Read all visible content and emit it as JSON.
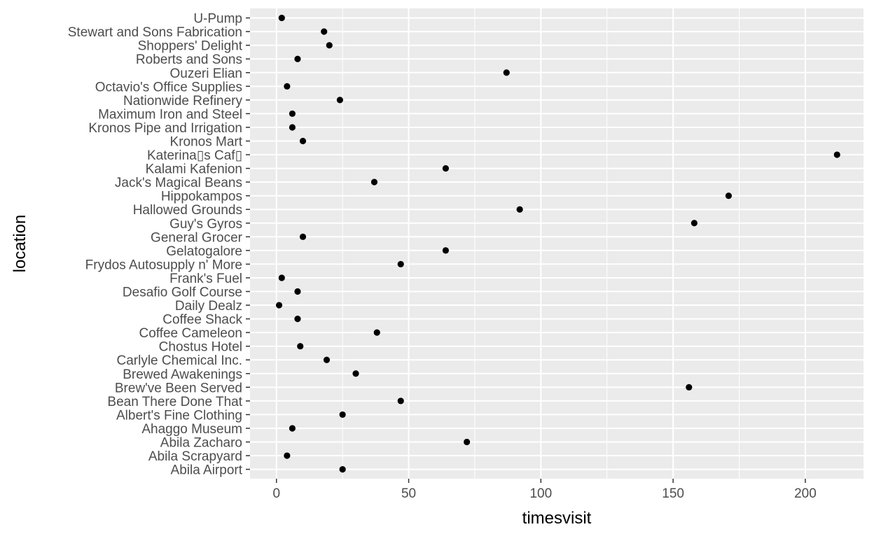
{
  "chart_data": {
    "type": "scatter",
    "title": "",
    "xlabel": "timesvisit",
    "ylabel": "location",
    "xlim": [
      -10,
      222
    ],
    "x_ticks": [
      0,
      50,
      100,
      150,
      200
    ],
    "grid": true,
    "legend": "none",
    "colors": {
      "panel": "#ebebeb",
      "grid": "#ffffff",
      "point": "#000000",
      "tick_text": "#4d4d4d",
      "tick_mark": "#333333"
    },
    "points": [
      {
        "location": "U-Pump",
        "timesvisit": 2
      },
      {
        "location": "Stewart and Sons Fabrication",
        "timesvisit": 18
      },
      {
        "location": "Shoppers' Delight",
        "timesvisit": 20
      },
      {
        "location": "Roberts and Sons",
        "timesvisit": 8
      },
      {
        "location": "Ouzeri Elian",
        "timesvisit": 87
      },
      {
        "location": "Octavio's Office Supplies",
        "timesvisit": 4
      },
      {
        "location": "Nationwide Refinery",
        "timesvisit": 24
      },
      {
        "location": "Maximum Iron and Steel",
        "timesvisit": 6
      },
      {
        "location": "Kronos Pipe and Irrigation",
        "timesvisit": 6
      },
      {
        "location": "Kronos Mart",
        "timesvisit": 10
      },
      {
        "location": "Katerina▯s Caf▯",
        "timesvisit": 212
      },
      {
        "location": "Kalami Kafenion",
        "timesvisit": 64
      },
      {
        "location": "Jack's Magical Beans",
        "timesvisit": 37
      },
      {
        "location": "Hippokampos",
        "timesvisit": 171
      },
      {
        "location": "Hallowed Grounds",
        "timesvisit": 92
      },
      {
        "location": "Guy's Gyros",
        "timesvisit": 158
      },
      {
        "location": "General Grocer",
        "timesvisit": 10
      },
      {
        "location": "Gelatogalore",
        "timesvisit": 64
      },
      {
        "location": "Frydos Autosupply n' More",
        "timesvisit": 47
      },
      {
        "location": "Frank's Fuel",
        "timesvisit": 2
      },
      {
        "location": "Desafio Golf Course",
        "timesvisit": 8
      },
      {
        "location": "Daily Dealz",
        "timesvisit": 1
      },
      {
        "location": "Coffee Shack",
        "timesvisit": 8
      },
      {
        "location": "Coffee Cameleon",
        "timesvisit": 38
      },
      {
        "location": "Chostus Hotel",
        "timesvisit": 9
      },
      {
        "location": "Carlyle Chemical Inc.",
        "timesvisit": 19
      },
      {
        "location": "Brewed Awakenings",
        "timesvisit": 30
      },
      {
        "location": "Brew've Been Served",
        "timesvisit": 156
      },
      {
        "location": "Bean There Done That",
        "timesvisit": 47
      },
      {
        "location": "Albert's Fine Clothing",
        "timesvisit": 25
      },
      {
        "location": "Ahaggo Museum",
        "timesvisit": 6
      },
      {
        "location": "Abila Zacharo",
        "timesvisit": 72
      },
      {
        "location": "Abila Scrapyard",
        "timesvisit": 4
      },
      {
        "location": "Abila Airport",
        "timesvisit": 25
      }
    ]
  }
}
